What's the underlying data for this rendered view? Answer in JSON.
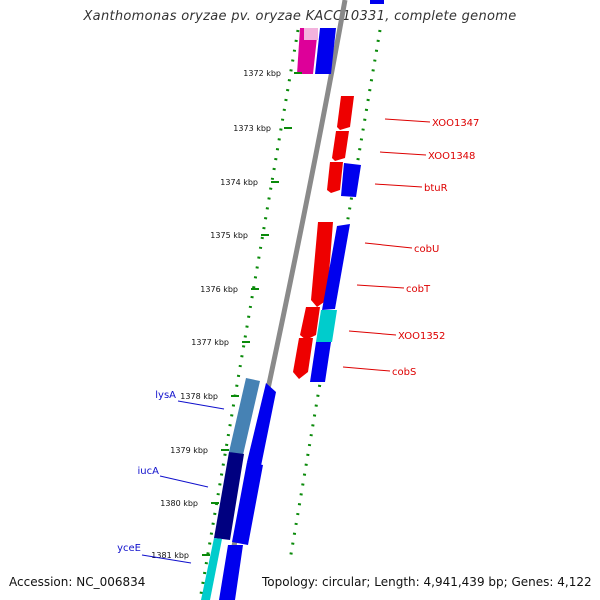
{
  "title": "Xanthomonas oryzae pv. oryzae KACC10331, complete genome",
  "footer": {
    "accession": "Accession: NC_006834",
    "stats": "Topology: circular; Length: 4,941,439 bp; Genes: 4,122"
  },
  "ticks": [
    "1372 kbp",
    "1373 kbp",
    "1374 kbp",
    "1375 kbp",
    "1376 kbp",
    "1377 kbp",
    "1378 kbp",
    "1379 kbp",
    "1380 kbp",
    "1381 kbp"
  ],
  "genes_right": [
    "XOO1347",
    "XOO1348",
    "btuR",
    "cobU",
    "cobT",
    "XOO1352",
    "cobS"
  ],
  "genes_left": [
    "lysA",
    "iucA",
    "yceE"
  ],
  "colors": {
    "label_right": "#dd0000",
    "label_left": "#1010cc",
    "tick": "#0a8a0a",
    "backbone": "#8a8a8a",
    "red_gene": "#ee0000",
    "blue_gene": "#0000ee",
    "cyan_gene": "#00cccc",
    "navy_gene": "#000080",
    "steel_gene": "#4682b4",
    "magenta_gene": "#dd0099"
  }
}
